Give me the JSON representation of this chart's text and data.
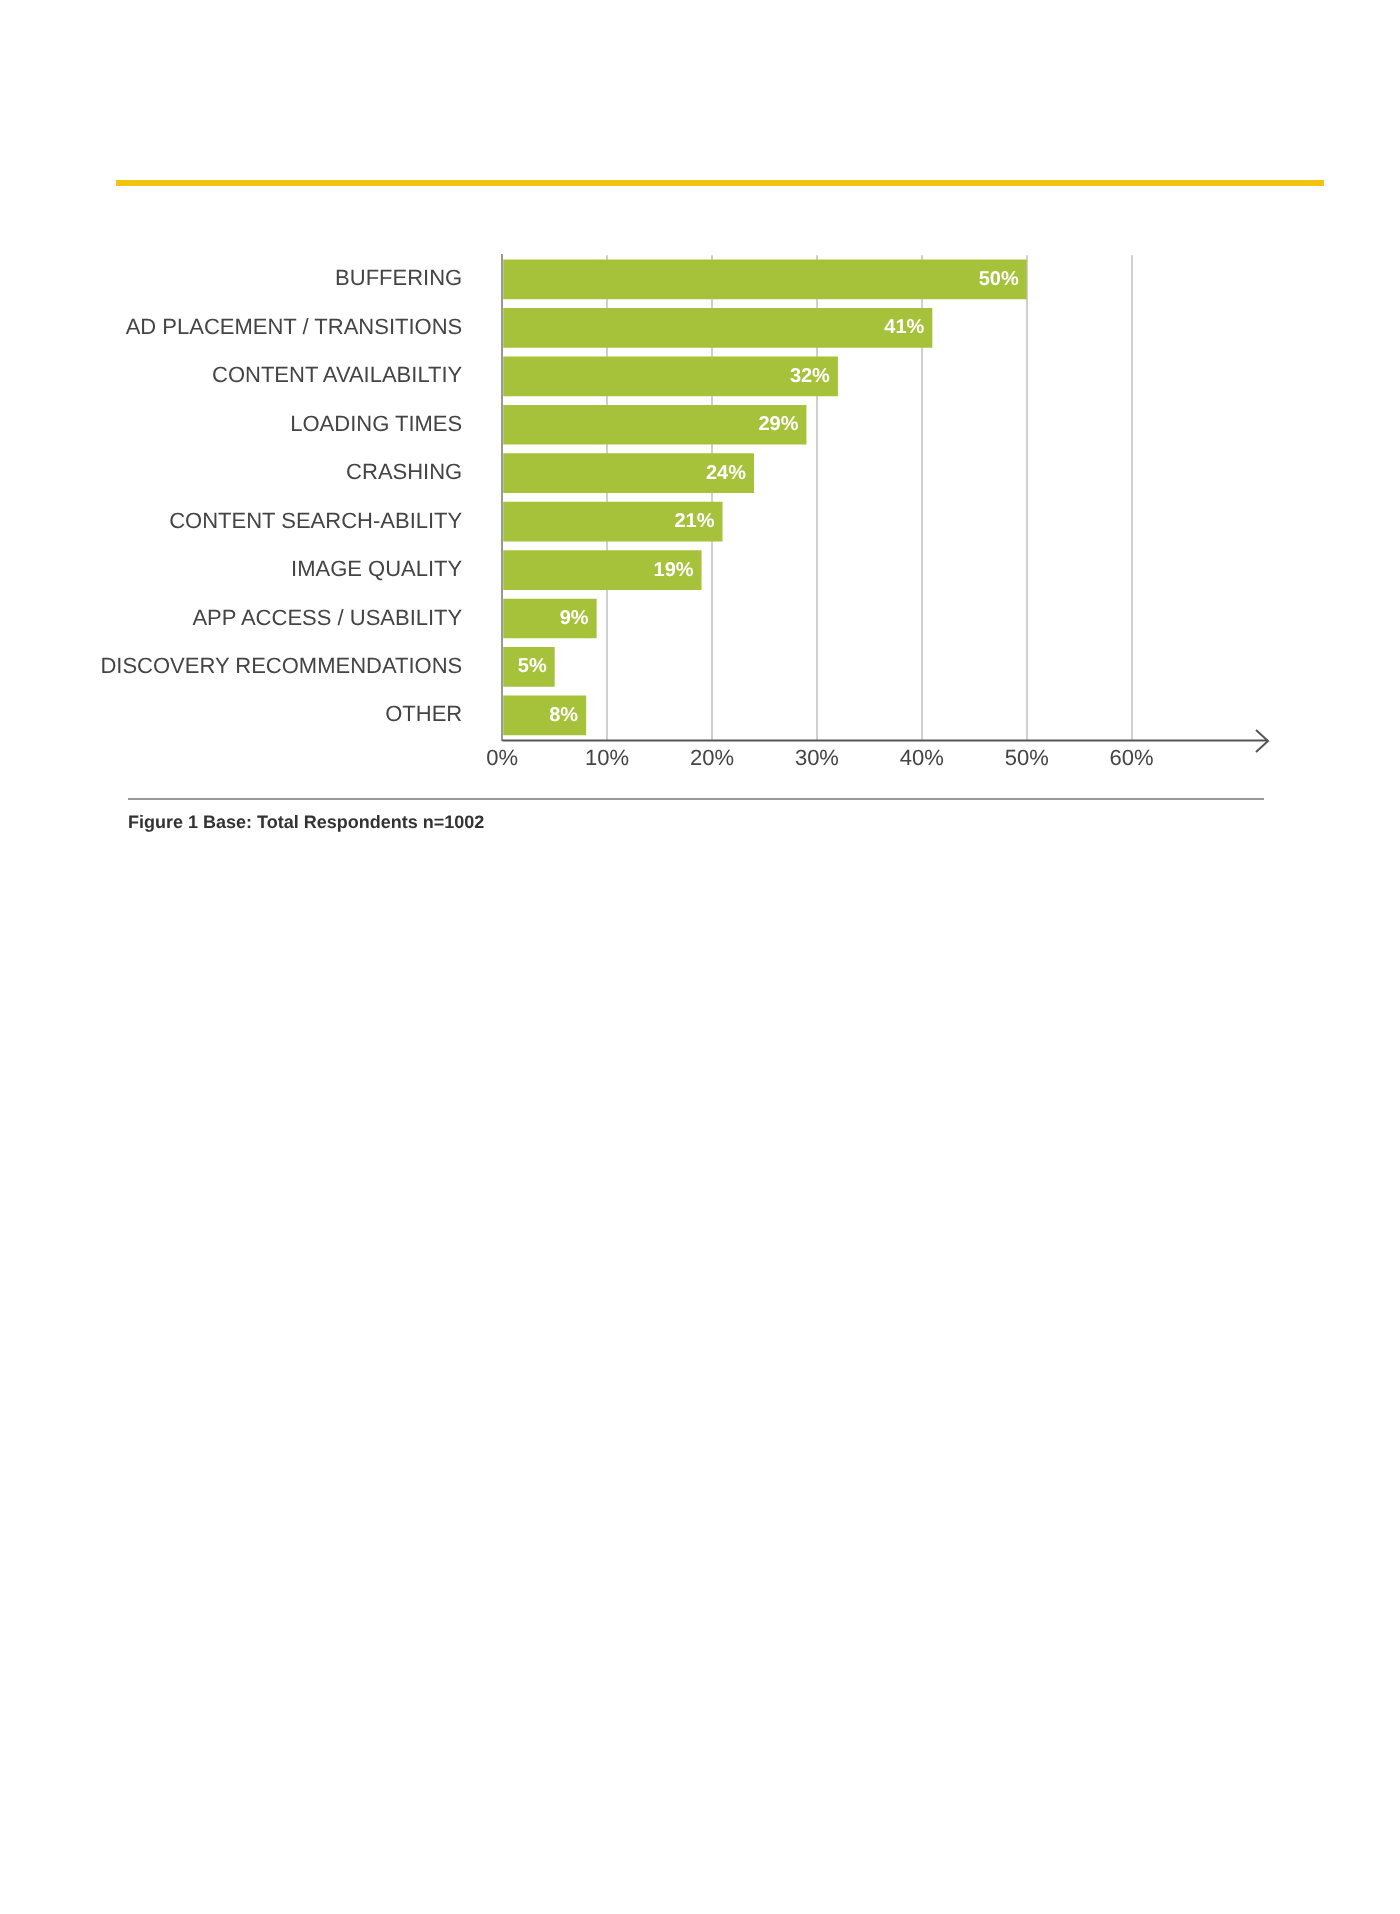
{
  "chart_data": {
    "type": "bar",
    "orientation": "horizontal",
    "categories": [
      "BUFFERING",
      "AD PLACEMENT / TRANSITIONS",
      "CONTENT AVAILABILTIY",
      "LOADING TIMES",
      "CRASHING",
      "CONTENT SEARCH-ABILITY",
      "IMAGE QUALITY",
      "APP ACCESS / USABILITY",
      "DISCOVERY RECOMMENDATIONS",
      "OTHER"
    ],
    "values": [
      50,
      41,
      32,
      29,
      24,
      21,
      19,
      9,
      5,
      8
    ],
    "color": "#a5c23a",
    "value_labels": [
      "50%",
      "41%",
      "32%",
      "29%",
      "24%",
      "21%",
      "19%",
      "9%",
      "5%",
      "8%"
    ],
    "xlim": [
      0,
      73
    ],
    "xticks": [
      {
        "value": 0,
        "label": "0%"
      },
      {
        "value": 10,
        "label": "10%"
      },
      {
        "value": 20,
        "label": "20%"
      },
      {
        "value": 30,
        "label": "30%"
      },
      {
        "value": 40,
        "label": "40%"
      },
      {
        "value": 50,
        "label": "50%"
      },
      {
        "value": 60,
        "label": "60%"
      }
    ],
    "grid": "x",
    "annotations": [
      "Figure 1 Base: Total Respondents n=1002"
    ]
  }
}
